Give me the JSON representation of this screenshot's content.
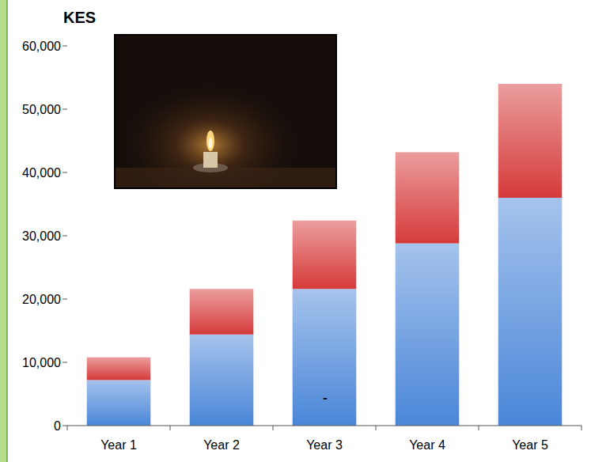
{
  "chart_data": {
    "type": "bar",
    "stacked": true,
    "title": "KES",
    "categories": [
      "Year 1",
      "Year 2",
      "Year 3",
      "Year 4",
      "Year 5"
    ],
    "series": [
      {
        "color": "#4a86d8",
        "values": [
          7200,
          14400,
          21600,
          28800,
          36000
        ]
      },
      {
        "color": "#d63a3a",
        "values": [
          3600,
          7200,
          10800,
          14400,
          18000
        ]
      }
    ],
    "ylim": [
      0,
      60000
    ],
    "yticks": [
      0,
      {
        "value": 10000,
        "label": "10,000"
      },
      {
        "value": 20000,
        "label": "20,000"
      },
      {
        "value": 30000,
        "label": "30,000"
      },
      {
        "value": 40000,
        "label": "40,000"
      },
      {
        "value": 50000,
        "label": "50,000"
      },
      {
        "value": 60000,
        "label": "60,000"
      }
    ],
    "grid": false,
    "annotations": [
      "-"
    ]
  }
}
